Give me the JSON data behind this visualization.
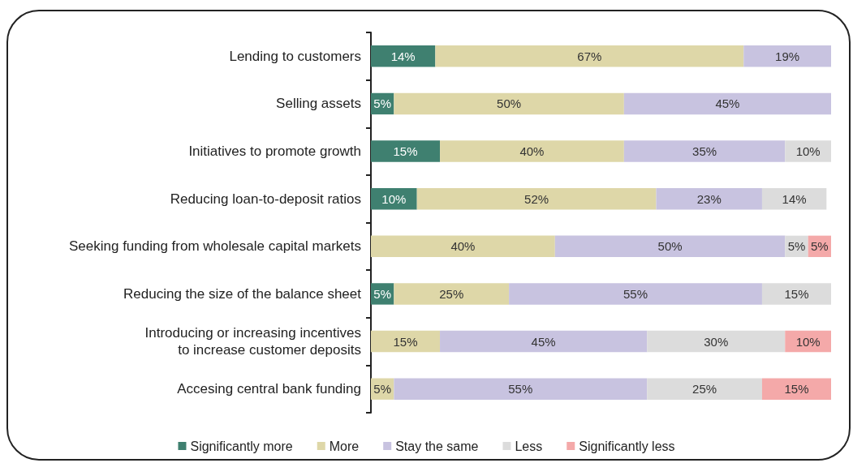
{
  "chart_data": {
    "type": "bar",
    "orientation": "horizontal",
    "stacked": true,
    "legend": "bottom",
    "tick_labels": "y",
    "xlim": [
      0,
      100
    ],
    "categories": [
      "Lending to customers",
      "Selling assets",
      "Initiatives to promote growth",
      "Reducing loan-to-deposit ratios",
      "Seeking funding from wholesale capital markets",
      "Reducing the size of the balance sheet",
      "Introducing or increasing incentives\nto increase customer deposits",
      "Accesing central bank funding"
    ],
    "series": [
      {
        "name": "Significantly more",
        "color": "#3f8070",
        "values": [
          14,
          5,
          15,
          10,
          null,
          5,
          null,
          null
        ],
        "value_labels": [
          "14%",
          "5%",
          "15%",
          "10%",
          null,
          "5%",
          null,
          null
        ]
      },
      {
        "name": "More",
        "color": "#ded7a8",
        "values": [
          67,
          50,
          40,
          52,
          40,
          25,
          15,
          5
        ],
        "value_labels": [
          "67%",
          "50%",
          "40%",
          "52%",
          "40%",
          "25%",
          "15%",
          "5%"
        ]
      },
      {
        "name": "Stay the same",
        "color": "#c8c3e0",
        "values": [
          19,
          45,
          35,
          23,
          50,
          55,
          45,
          55
        ],
        "value_labels": [
          "19%",
          "45%",
          "35%",
          "23%",
          "50%",
          "55%",
          "45%",
          "55%"
        ]
      },
      {
        "name": "Less",
        "color": "#dcdcdc",
        "values": [
          null,
          null,
          10,
          14,
          5,
          15,
          30,
          25
        ],
        "value_labels": [
          null,
          null,
          "10%",
          "14%",
          "5%",
          "15%",
          "30%",
          "25%"
        ]
      },
      {
        "name": "Significantly less",
        "color": "#f4a9a9",
        "values": [
          null,
          null,
          null,
          null,
          5,
          null,
          10,
          15
        ],
        "value_labels": [
          null,
          null,
          null,
          null,
          "5%",
          null,
          "10%",
          "15%"
        ]
      }
    ]
  }
}
